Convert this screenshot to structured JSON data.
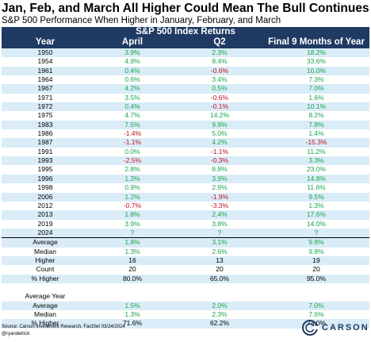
{
  "title": "Jan, Feb, and March All Higher Could Mean The Bull Continues",
  "subtitle": "S&P 500 Performance When Higher in January, February, and March",
  "header": {
    "group": "S&P 500 Index Returns",
    "col_year": "Year",
    "col_april": "April",
    "col_q2": "Q2",
    "col_final": "Final 9 Months of Year"
  },
  "chart_data": {
    "type": "table",
    "title": "Jan, Feb, and March All Higher Could Mean The Bull Continues",
    "subtitle": "S&P 500 Performance When Higher in January, February, and March",
    "columns": [
      "Year",
      "April",
      "Q2",
      "Final 9 Months of Year"
    ],
    "rows": [
      {
        "year": "1950",
        "april": "3.9%",
        "q2": "2.3%",
        "final": "18.2%"
      },
      {
        "year": "1954",
        "april": "4.9%",
        "q2": "8.4%",
        "final": "33.6%"
      },
      {
        "year": "1961",
        "april": "0.4%",
        "q2": "-0.6%",
        "final": "10.0%"
      },
      {
        "year": "1964",
        "april": "0.6%",
        "q2": "3.4%",
        "final": "7.3%"
      },
      {
        "year": "1967",
        "april": "4.2%",
        "q2": "0.5%",
        "final": "7.0%"
      },
      {
        "year": "1971",
        "april": "3.5%",
        "q2": "-0.6%",
        "final": "1.6%"
      },
      {
        "year": "1972",
        "april": "0.4%",
        "q2": "-0.1%",
        "final": "10.1%"
      },
      {
        "year": "1975",
        "april": "4.7%",
        "q2": "14.2%",
        "final": "8.2%"
      },
      {
        "year": "1983",
        "april": "7.5%",
        "q2": "9.9%",
        "final": "7.8%"
      },
      {
        "year": "1986",
        "april": "-1.4%",
        "q2": "5.0%",
        "final": "1.4%"
      },
      {
        "year": "1987",
        "april": "-1.1%",
        "q2": "4.2%",
        "final": "-15.3%"
      },
      {
        "year": "1991",
        "april": "0.0%",
        "q2": "-1.1%",
        "final": "11.2%"
      },
      {
        "year": "1993",
        "april": "-2.5%",
        "q2": "-0.3%",
        "final": "3.3%"
      },
      {
        "year": "1995",
        "april": "2.8%",
        "q2": "8.8%",
        "final": "23.0%"
      },
      {
        "year": "1996",
        "april": "1.3%",
        "q2": "3.9%",
        "final": "14.8%"
      },
      {
        "year": "1998",
        "april": "0.9%",
        "q2": "2.9%",
        "final": "11.6%"
      },
      {
        "year": "2006",
        "april": "1.2%",
        "q2": "-1.9%",
        "final": "9.5%"
      },
      {
        "year": "2012",
        "april": "-0.7%",
        "q2": "-3.3%",
        "final": "1.3%"
      },
      {
        "year": "2013",
        "april": "1.8%",
        "q2": "2.4%",
        "final": "17.6%"
      },
      {
        "year": "2019",
        "april": "3.9%",
        "q2": "3.8%",
        "final": "14.0%"
      },
      {
        "year": "2024",
        "april": "?",
        "q2": "?",
        "final": "?"
      }
    ],
    "summary": [
      {
        "label": "Average",
        "april": "1.8%",
        "q2": "3.1%",
        "final": "9.8%"
      },
      {
        "label": "Median",
        "april": "1.3%",
        "q2": "2.6%",
        "final": "9.8%"
      },
      {
        "label": "Higher",
        "april": "16",
        "q2": "13",
        "final": "19"
      },
      {
        "label": "Count",
        "april": "20",
        "q2": "20",
        "final": "20"
      },
      {
        "label": "% Higher",
        "april": "80.0%",
        "q2": "65.0%",
        "final": "95.0%"
      }
    ],
    "average_year_label": "Average Year",
    "average_year": [
      {
        "label": "Average",
        "april": "1.5%",
        "q2": "2.0%",
        "final": "7.0%"
      },
      {
        "label": "Median",
        "april": "1.3%",
        "q2": "2.3%",
        "final": "7.6%"
      },
      {
        "label": "% Higher",
        "april": "71.6%",
        "q2": "62.2%",
        "final": "73.0%"
      }
    ]
  },
  "colors": {
    "header_bg": "#1f3a63",
    "row_alt": "#d9ecf7",
    "positive": "#1aa64a",
    "negative": "#c0111f"
  },
  "source": "Source: Carson Investment Research, FactSet 03/24/2024",
  "handle": "@ryandetrick",
  "logo_text": "CARSON"
}
